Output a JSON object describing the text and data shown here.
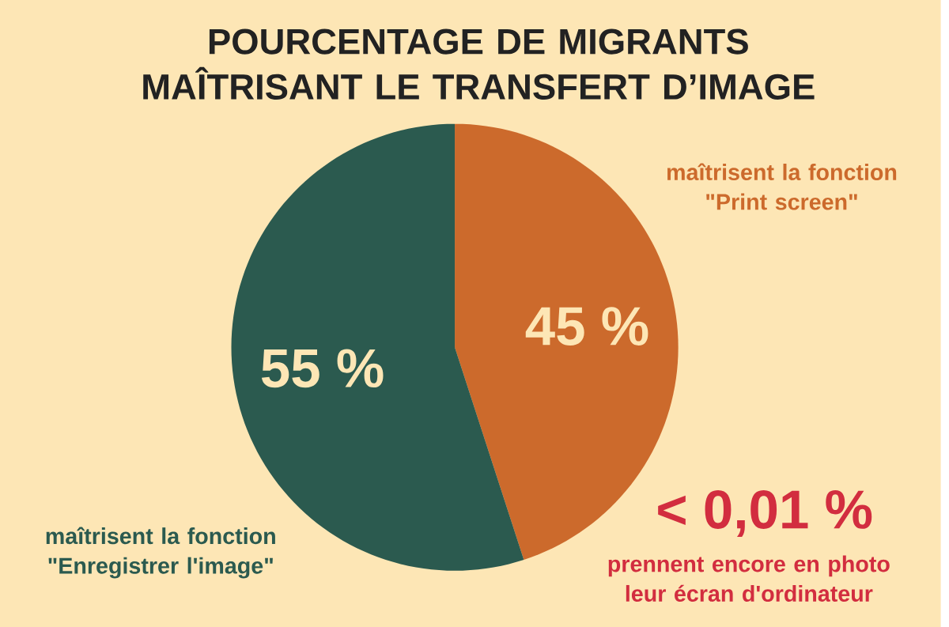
{
  "chart_data": {
    "type": "pie",
    "title": "POURCENTAGE DE MIGRANTS MAÎTRISANT LE TRANSFERT D’IMAGE",
    "categories": [
      "maîtrisent la fonction \"Print screen\"",
      "prennent encore en photo leur écran d'ordinateur",
      "maîtrisent la fonction \"Enregistrer l'image\""
    ],
    "values": [
      45,
      0,
      55
    ],
    "value_labels": [
      "45 %",
      "< 0,01 %",
      "55 %"
    ],
    "colors": [
      "#cc6a2c",
      "#d22d3f",
      "#2b5a4f"
    ]
  }
}
